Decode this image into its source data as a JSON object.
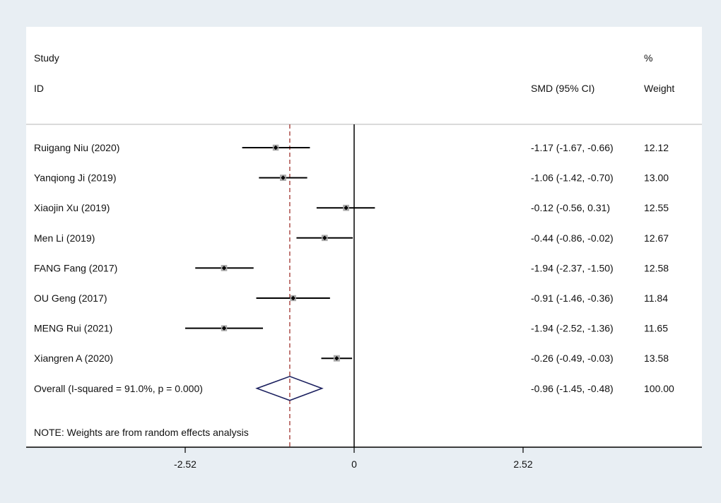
{
  "header": {
    "study_label": "Study",
    "id_label": "ID",
    "effect_label": "SMD (95% CI)",
    "pct_label": "%",
    "weight_label": "Weight"
  },
  "footnote": "NOTE: Weights are from random effects analysis",
  "colors": {
    "background": "#e8eef3",
    "panel": "#ffffff",
    "line": "#000000",
    "marker_box": "#a9a9a9",
    "overall_line": "#a0332e",
    "diamond": "#1a1f5e"
  },
  "chart_data": {
    "type": "forest",
    "measure": "SMD",
    "xticks": [
      -2.52,
      0,
      2.52
    ],
    "xtick_labels": [
      "-2.52",
      "0",
      "2.52"
    ],
    "xlim": [
      -4.95,
      5.2
    ],
    "null_line": 0,
    "studies": [
      {
        "label": "Ruigang Niu (2020)",
        "smd": -1.17,
        "lo": -1.67,
        "hi": -0.66,
        "ci_text": "-1.17 (-1.67, -0.66)",
        "weight": 12.12,
        "weight_text": "12.12"
      },
      {
        "label": "Yanqiong Ji (2019)",
        "smd": -1.06,
        "lo": -1.42,
        "hi": -0.7,
        "ci_text": "-1.06 (-1.42, -0.70)",
        "weight": 13.0,
        "weight_text": "13.00"
      },
      {
        "label": "Xiaojin Xu (2019)",
        "smd": -0.12,
        "lo": -0.56,
        "hi": 0.31,
        "ci_text": "-0.12 (-0.56, 0.31)",
        "weight": 12.55,
        "weight_text": "12.55"
      },
      {
        "label": "Men Li (2019)",
        "smd": -0.44,
        "lo": -0.86,
        "hi": -0.02,
        "ci_text": "-0.44 (-0.86, -0.02)",
        "weight": 12.67,
        "weight_text": "12.67"
      },
      {
        "label": "FANG Fang (2017)",
        "smd": -1.94,
        "lo": -2.37,
        "hi": -1.5,
        "ci_text": "-1.94 (-2.37, -1.50)",
        "weight": 12.58,
        "weight_text": "12.58"
      },
      {
        "label": "OU Geng (2017)",
        "smd": -0.91,
        "lo": -1.46,
        "hi": -0.36,
        "ci_text": "-0.91 (-1.46, -0.36)",
        "weight": 11.84,
        "weight_text": "11.84"
      },
      {
        "label": "MENG Rui (2021)",
        "smd": -1.94,
        "lo": -2.52,
        "hi": -1.36,
        "ci_text": "-1.94 (-2.52, -1.36)",
        "weight": 11.65,
        "weight_text": "11.65"
      },
      {
        "label": "Xiangren A (2020)",
        "smd": -0.26,
        "lo": -0.49,
        "hi": -0.03,
        "ci_text": "-0.26 (-0.49, -0.03)",
        "weight": 13.58,
        "weight_text": "13.58"
      }
    ],
    "overall": {
      "label": "Overall  (I-squared = 91.0%, p = 0.000)",
      "smd": -0.96,
      "lo": -1.45,
      "hi": -0.48,
      "ci_text": "-0.96 (-1.45, -0.48)",
      "weight_text": "100.00"
    }
  }
}
